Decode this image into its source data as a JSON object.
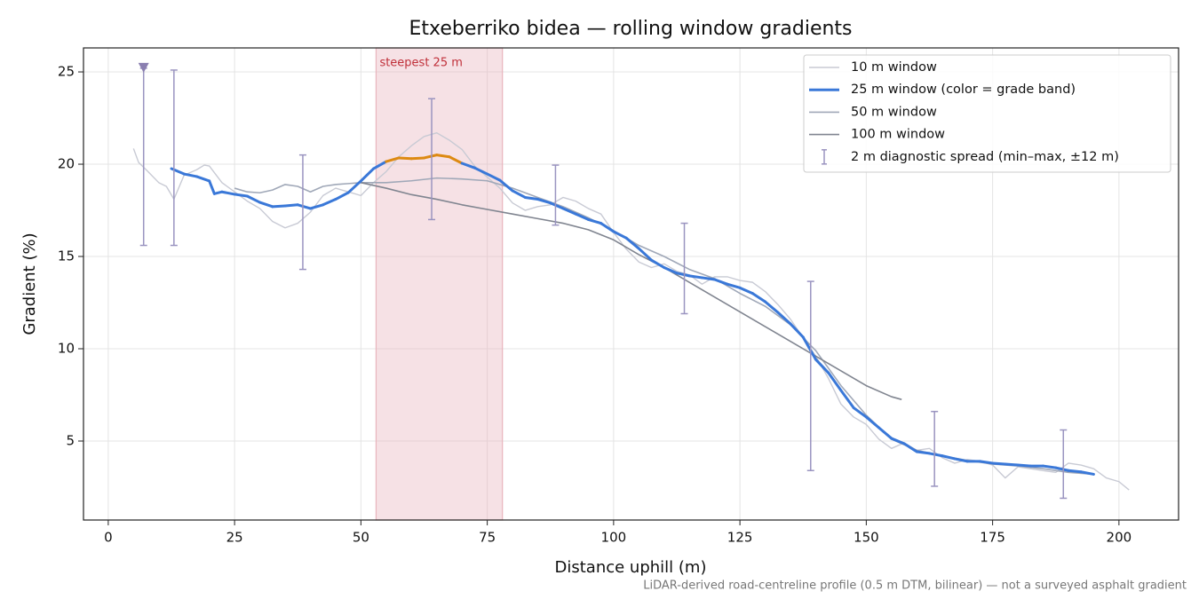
{
  "chart_data": {
    "type": "line",
    "title": "Etxeberriko bidea — rolling window gradients",
    "xlabel": "Distance uphill (m)",
    "ylabel": "Gradient (%)",
    "note": "LiDAR-derived road-centreline profile (0.5 m DTM, bilinear) — not a surveyed asphalt gradient",
    "xlim": [
      -4.9,
      211.8
    ],
    "ylim": [
      0.72,
      26.3
    ],
    "xticks": [
      0,
      25,
      50,
      75,
      100,
      125,
      150,
      175,
      200
    ],
    "yticks": [
      5,
      10,
      15,
      20,
      25
    ],
    "grid": true,
    "legend": "upper right",
    "shade": {
      "from": 53,
      "to": 78,
      "label": "steepest 25 m",
      "color": "#e8b4bd",
      "label_color": "#c0303a"
    },
    "series": [
      {
        "name": "10 m window",
        "color": "#c8cad4",
        "width": 1.4,
        "x": [
          5,
          6,
          7.5,
          10,
          11.5,
          13,
          15,
          17.5,
          19,
          20,
          22.5,
          25,
          27.5,
          30,
          32.5,
          35,
          37.5,
          40,
          42.5,
          45,
          47.5,
          50,
          52.5,
          55,
          57.5,
          60,
          62.5,
          65,
          67.5,
          70,
          72.5,
          75,
          77.5,
          80,
          82.5,
          85,
          87.5,
          90,
          92.5,
          95,
          97.5,
          100,
          102.5,
          105,
          107.5,
          110,
          112.5,
          115,
          117.5,
          120,
          122.5,
          125,
          127.5,
          130,
          132.5,
          135,
          137.5,
          140,
          142.5,
          145,
          147.5,
          150,
          152.5,
          155,
          157.5,
          160,
          162.5,
          165,
          167.5,
          170,
          172.5,
          175,
          177.5,
          180,
          182.5,
          185,
          187.5,
          190,
          192.5,
          195,
          197.5,
          200,
          202
        ],
        "values": [
          20.85,
          20.1,
          19.7,
          19.0,
          18.8,
          18.1,
          19.4,
          19.7,
          19.95,
          19.9,
          19.0,
          18.5,
          18.0,
          17.6,
          16.9,
          16.55,
          16.8,
          17.4,
          18.3,
          18.7,
          18.5,
          18.3,
          19.0,
          19.6,
          20.4,
          21.0,
          21.5,
          21.7,
          21.3,
          20.8,
          19.9,
          19.3,
          18.7,
          17.9,
          17.5,
          17.7,
          17.8,
          18.2,
          18.0,
          17.6,
          17.3,
          16.3,
          15.4,
          14.7,
          14.4,
          14.6,
          14.2,
          14.0,
          13.5,
          13.9,
          13.9,
          13.7,
          13.6,
          13.1,
          12.4,
          11.6,
          10.6,
          9.6,
          8.4,
          7.0,
          6.3,
          5.9,
          5.1,
          4.6,
          4.9,
          4.5,
          4.6,
          4.1,
          3.8,
          4.0,
          3.9,
          3.7,
          3.0,
          3.6,
          3.5,
          3.4,
          3.3,
          3.8,
          3.7,
          3.5,
          3.0,
          2.8,
          2.35
        ]
      },
      {
        "name": "25 m window (color = grade band)",
        "color": "#3a78d8",
        "width": 3,
        "band_from": 20,
        "band_color": "#dd8a12",
        "x": [
          12.5,
          15,
          17.5,
          20,
          21,
          22.5,
          25,
          27.5,
          30,
          32.5,
          35,
          37.5,
          40,
          42.5,
          45,
          47.5,
          50,
          52.5,
          55,
          57.5,
          60,
          62.5,
          65,
          67.5,
          70,
          72.5,
          75,
          77.5,
          80,
          82.5,
          85,
          87.5,
          90,
          92.5,
          95,
          97.5,
          100,
          102.5,
          105,
          107.5,
          110,
          112.5,
          115,
          117.5,
          120,
          122.5,
          125,
          127.5,
          130,
          132.5,
          135,
          137.5,
          140,
          142.5,
          145,
          147.5,
          150,
          152.5,
          155,
          157.5,
          160,
          162.5,
          165,
          167.5,
          170,
          172.5,
          175,
          177.5,
          180,
          182.5,
          185,
          187.5,
          190,
          192.5,
          195
        ],
        "values": [
          19.76,
          19.47,
          19.33,
          19.09,
          18.4,
          18.5,
          18.37,
          18.27,
          17.93,
          17.7,
          17.74,
          17.8,
          17.6,
          17.8,
          18.1,
          18.46,
          19.09,
          19.76,
          20.14,
          20.34,
          20.3,
          20.34,
          20.5,
          20.4,
          20.05,
          19.8,
          19.47,
          19.13,
          18.56,
          18.2,
          18.1,
          17.9,
          17.6,
          17.3,
          17.0,
          16.8,
          16.35,
          16.0,
          15.43,
          14.8,
          14.4,
          14.1,
          13.95,
          13.85,
          13.75,
          13.5,
          13.3,
          13.0,
          12.55,
          11.97,
          11.35,
          10.63,
          9.42,
          8.7,
          7.74,
          6.8,
          6.3,
          5.72,
          5.14,
          4.86,
          4.42,
          4.33,
          4.2,
          4.04,
          3.9,
          3.9,
          3.8,
          3.75,
          3.7,
          3.65,
          3.65,
          3.55,
          3.4,
          3.33,
          3.2
        ]
      },
      {
        "name": "50 m window",
        "color": "#a0a8b8",
        "width": 1.6,
        "x": [
          25,
          27.5,
          30,
          32.5,
          35,
          37.5,
          40,
          42.5,
          45,
          47.5,
          50,
          55,
          60,
          65,
          70,
          75,
          80,
          85,
          90,
          95,
          100,
          105,
          110,
          115,
          120,
          125,
          130,
          135,
          140,
          145,
          150,
          155,
          160,
          165,
          170,
          175,
          180,
          185,
          190,
          195
        ],
        "values": [
          18.7,
          18.5,
          18.45,
          18.6,
          18.9,
          18.8,
          18.5,
          18.8,
          18.9,
          18.95,
          19.0,
          19.0,
          19.1,
          19.25,
          19.2,
          19.1,
          18.7,
          18.2,
          17.7,
          17.1,
          16.4,
          15.6,
          15.0,
          14.3,
          13.8,
          13.0,
          12.3,
          11.3,
          9.9,
          8.0,
          6.4,
          5.1,
          4.5,
          4.2,
          3.95,
          3.75,
          3.65,
          3.5,
          3.3,
          3.2
        ]
      },
      {
        "name": "100 m window",
        "color": "#808590",
        "width": 1.6,
        "x": [
          50,
          55,
          60,
          65,
          70,
          75,
          80,
          85,
          90,
          95,
          100,
          105,
          110,
          115,
          120,
          125,
          130,
          135,
          140,
          145,
          150,
          155,
          157
        ],
        "values": [
          19.0,
          18.7,
          18.35,
          18.1,
          17.8,
          17.55,
          17.3,
          17.05,
          16.8,
          16.45,
          15.9,
          15.1,
          14.4,
          13.6,
          12.8,
          12.0,
          11.2,
          10.4,
          9.6,
          8.8,
          8.0,
          7.4,
          7.25
        ]
      }
    ],
    "spread": {
      "name": "2 m diagnostic spread (min–max, ±12 m)",
      "color": "#9a94c0",
      "x": [
        7,
        13,
        38.5,
        64,
        88.5,
        114,
        139,
        163.5,
        189
      ],
      "low": [
        15.6,
        15.6,
        14.3,
        17.0,
        16.7,
        11.9,
        3.4,
        2.55,
        1.9
      ],
      "high": [
        25.2,
        25.1,
        20.5,
        23.55,
        19.95,
        16.8,
        13.65,
        6.6,
        5.6
      ]
    }
  }
}
